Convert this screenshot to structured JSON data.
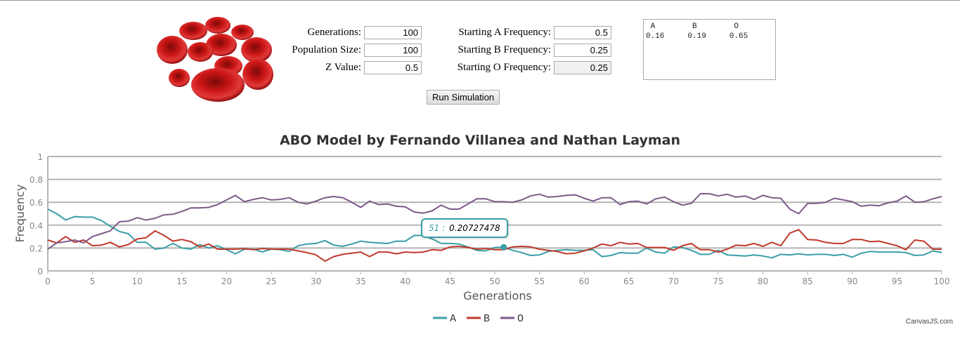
{
  "form": {
    "generations_label": "Generations:",
    "generations_value": "100",
    "population_label": "Population Size:",
    "population_value": "100",
    "z_label": "Z Value:",
    "z_value": "0.5",
    "start_a_label": "Starting A Frequency:",
    "start_a_value": "0.5",
    "start_b_label": "Starting B Frequency:",
    "start_b_value": "0.25",
    "start_o_label": "Starting O Frequency:",
    "start_o_value": "0.25",
    "run_button": "Run Simulation"
  },
  "output_text": " A        B        O\n0.16     0.19     0.65",
  "tooltip": {
    "key": "51 :",
    "value": "0.20727478"
  },
  "credit": "CanvasJS.com",
  "chart_data": {
    "type": "line",
    "title": "ABO Model by Fernando Villanea and Nathan Layman",
    "xlabel": "Generations",
    "ylabel": "Frequency",
    "xlim": [
      0,
      100
    ],
    "ylim": [
      0,
      1
    ],
    "xticks": [
      0,
      5,
      10,
      15,
      20,
      25,
      30,
      35,
      40,
      45,
      50,
      55,
      60,
      65,
      70,
      75,
      80,
      85,
      90,
      95,
      100
    ],
    "yticks": [
      0,
      0.2,
      0.4,
      0.6,
      0.8,
      1
    ],
    "grid": true,
    "legend": "bottom",
    "series": [
      {
        "name": "A",
        "color": "#3a9ea6",
        "values": [
          0.54,
          0.5,
          0.445,
          0.475,
          0.47,
          0.47,
          0.44,
          0.39,
          0.345,
          0.325,
          0.25,
          0.25,
          0.19,
          0.2,
          0.24,
          0.2,
          0.19,
          0.23,
          0.2,
          0.22,
          0.185,
          0.15,
          0.19,
          0.19,
          0.165,
          0.19,
          0.185,
          0.17,
          0.22,
          0.235,
          0.24,
          0.265,
          0.225,
          0.215,
          0.235,
          0.26,
          0.25,
          0.245,
          0.24,
          0.26,
          0.26,
          0.31,
          0.31,
          0.28,
          0.24,
          0.24,
          0.235,
          0.21,
          0.18,
          0.175,
          0.205,
          0.2073,
          0.18,
          0.16,
          0.135,
          0.14,
          0.17,
          0.18,
          0.185,
          0.18,
          0.18,
          0.185,
          0.125,
          0.135,
          0.16,
          0.155,
          0.155,
          0.2,
          0.165,
          0.155,
          0.21,
          0.205,
          0.18,
          0.145,
          0.145,
          0.18,
          0.14,
          0.135,
          0.13,
          0.14,
          0.13,
          0.115,
          0.145,
          0.14,
          0.15,
          0.14,
          0.145,
          0.145,
          0.135,
          0.145,
          0.12,
          0.155,
          0.17,
          0.165,
          0.165,
          0.165,
          0.16,
          0.135,
          0.14,
          0.175,
          0.16
        ]
      },
      {
        "name": "B",
        "color": "#c0392b",
        "values": [
          0.27,
          0.245,
          0.3,
          0.25,
          0.27,
          0.22,
          0.225,
          0.25,
          0.21,
          0.23,
          0.28,
          0.29,
          0.35,
          0.31,
          0.26,
          0.275,
          0.255,
          0.21,
          0.235,
          0.19,
          0.19,
          0.19,
          0.195,
          0.185,
          0.195,
          0.19,
          0.19,
          0.19,
          0.175,
          0.16,
          0.14,
          0.085,
          0.125,
          0.145,
          0.155,
          0.165,
          0.125,
          0.165,
          0.165,
          0.15,
          0.165,
          0.16,
          0.165,
          0.185,
          0.18,
          0.21,
          0.215,
          0.205,
          0.19,
          0.195,
          0.185,
          0.185,
          0.21,
          0.215,
          0.21,
          0.19,
          0.18,
          0.17,
          0.15,
          0.155,
          0.175,
          0.2,
          0.235,
          0.22,
          0.25,
          0.235,
          0.24,
          0.205,
          0.205,
          0.205,
          0.18,
          0.22,
          0.24,
          0.185,
          0.185,
          0.165,
          0.19,
          0.225,
          0.22,
          0.24,
          0.215,
          0.25,
          0.22,
          0.33,
          0.36,
          0.275,
          0.27,
          0.25,
          0.24,
          0.24,
          0.275,
          0.275,
          0.255,
          0.26,
          0.24,
          0.22,
          0.185,
          0.27,
          0.26,
          0.19,
          0.19
        ]
      },
      {
        "name": "O",
        "color": "#7d5a88",
        "values": [
          0.19,
          0.245,
          0.255,
          0.27,
          0.245,
          0.3,
          0.325,
          0.35,
          0.43,
          0.435,
          0.465,
          0.445,
          0.46,
          0.49,
          0.495,
          0.52,
          0.55,
          0.55,
          0.555,
          0.58,
          0.62,
          0.66,
          0.605,
          0.625,
          0.64,
          0.62,
          0.625,
          0.64,
          0.6,
          0.585,
          0.61,
          0.64,
          0.65,
          0.64,
          0.6,
          0.555,
          0.61,
          0.58,
          0.585,
          0.565,
          0.56,
          0.515,
          0.505,
          0.525,
          0.575,
          0.54,
          0.54,
          0.585,
          0.63,
          0.63,
          0.605,
          0.605,
          0.6,
          0.62,
          0.655,
          0.67,
          0.645,
          0.65,
          0.66,
          0.665,
          0.635,
          0.61,
          0.64,
          0.64,
          0.58,
          0.605,
          0.61,
          0.585,
          0.63,
          0.645,
          0.605,
          0.575,
          0.59,
          0.675,
          0.675,
          0.655,
          0.67,
          0.645,
          0.655,
          0.625,
          0.66,
          0.64,
          0.635,
          0.54,
          0.5,
          0.59,
          0.59,
          0.6,
          0.635,
          0.62,
          0.605,
          0.565,
          0.575,
          0.57,
          0.595,
          0.61,
          0.655,
          0.6,
          0.605,
          0.63,
          0.65
        ]
      }
    ],
    "highlight": {
      "series": "A",
      "x": 51,
      "y": 0.20727478
    }
  }
}
